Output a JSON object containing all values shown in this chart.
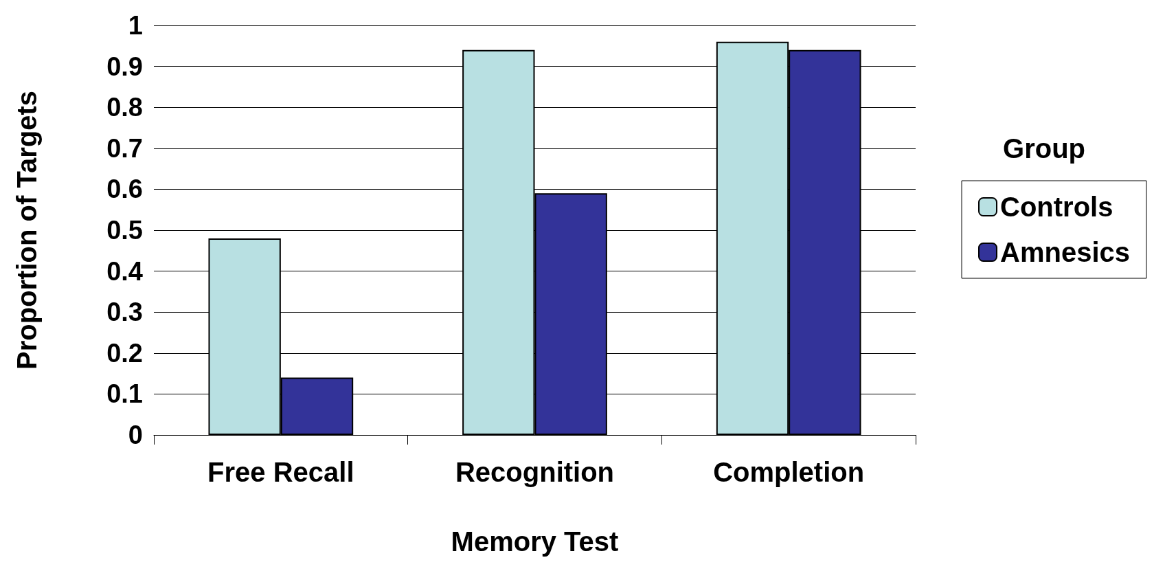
{
  "chart_data": {
    "type": "bar",
    "xlabel": "Memory Test",
    "ylabel": "Proportion of Targets",
    "legend_title": "Group",
    "categories": [
      "Free Recall",
      "Recognition",
      "Completion"
    ],
    "series": [
      {
        "name": "Controls",
        "color": "#b8e0e2",
        "values": [
          0.48,
          0.94,
          0.96
        ]
      },
      {
        "name": "Amnesics",
        "color": "#333399",
        "values": [
          0.14,
          0.59,
          0.94
        ]
      }
    ],
    "ylim": [
      0,
      1
    ],
    "yticks": [
      0,
      0.1,
      0.2,
      0.3,
      0.4,
      0.5,
      0.6,
      0.7,
      0.8,
      0.9,
      1
    ],
    "grid": "y",
    "legend": "right"
  }
}
